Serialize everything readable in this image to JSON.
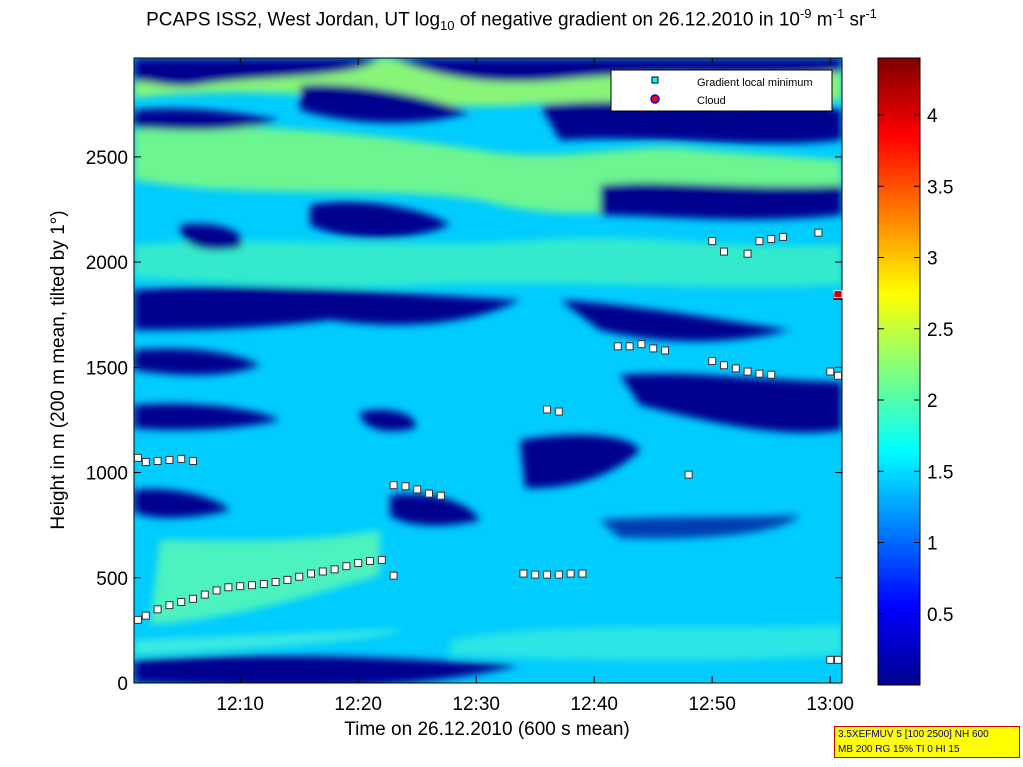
{
  "title": {
    "main": "PCAPS ISS2, West Jordan, UT log",
    "sub": "10",
    "mid": " of negative gradient on 26.12.2010 in 10",
    "exp1": "-9",
    "unit1": " m",
    "exp2": "-1",
    "unit2": " sr",
    "exp3": "-1"
  },
  "footnote": {
    "line1": "3.5XEFMUV 5 [100 2500] NH 600",
    "line2": "MB 200 RG 15% TI 0 HI 15"
  },
  "colors": {
    "background_field": "#00ccff",
    "low_value": "#00008f",
    "high_value": "#7f0000",
    "gradient_marker": "#00ffff",
    "cloud_marker": "#ff0000"
  },
  "chart_data": {
    "type": "heatmap",
    "xlabel": "Time on 26.12.2010 (600 s mean)",
    "ylabel": "Height in m (200 m mean, tilted by 1°)",
    "xlim": [
      "12:01",
      "13:01"
    ],
    "ylim": [
      0,
      2970
    ],
    "x_ticks": [
      "12:10",
      "12:20",
      "12:30",
      "12:40",
      "12:50",
      "13:00"
    ],
    "y_ticks": [
      0,
      500,
      1000,
      1500,
      2000,
      2500
    ],
    "colorbar": {
      "range": [
        0,
        4.4
      ],
      "ticks": [
        0.5,
        1,
        1.5,
        2,
        2.5,
        3,
        3.5,
        4
      ],
      "colormap": "jet"
    },
    "legend": {
      "position": "top-right",
      "entries": [
        {
          "name": "Gradient local minimum",
          "marker": "square",
          "color": "#00ffff"
        },
        {
          "name": "Cloud",
          "marker": "circle",
          "color": "#ff0000"
        }
      ]
    },
    "series": [
      {
        "name": "Gradient local minimum",
        "points": [
          [
            "12:01",
            300
          ],
          [
            "12:02",
            320
          ],
          [
            "12:03",
            350
          ],
          [
            "12:04",
            370
          ],
          [
            "12:05",
            385
          ],
          [
            "12:06",
            400
          ],
          [
            "12:07",
            420
          ],
          [
            "12:08",
            440
          ],
          [
            "12:09",
            455
          ],
          [
            "12:10",
            460
          ],
          [
            "12:11",
            465
          ],
          [
            "12:12",
            470
          ],
          [
            "12:13",
            480
          ],
          [
            "12:14",
            490
          ],
          [
            "12:15",
            505
          ],
          [
            "12:16",
            520
          ],
          [
            "12:17",
            530
          ],
          [
            "12:18",
            540
          ],
          [
            "12:19",
            555
          ],
          [
            "12:20",
            570
          ],
          [
            "12:21",
            580
          ],
          [
            "12:22",
            585
          ],
          [
            "12:23",
            510
          ],
          [
            "12:01",
            1070
          ],
          [
            "12:02",
            1050
          ],
          [
            "12:03",
            1055
          ],
          [
            "12:04",
            1060
          ],
          [
            "12:05",
            1065
          ],
          [
            "12:06",
            1055
          ],
          [
            "12:23",
            940
          ],
          [
            "12:24",
            935
          ],
          [
            "12:25",
            920
          ],
          [
            "12:26",
            900
          ],
          [
            "12:27",
            890
          ],
          [
            "12:34",
            520
          ],
          [
            "12:35",
            515
          ],
          [
            "12:36",
            515
          ],
          [
            "12:37",
            515
          ],
          [
            "12:38",
            520
          ],
          [
            "12:39",
            520
          ],
          [
            "12:36",
            1300
          ],
          [
            "12:37",
            1290
          ],
          [
            "12:42",
            1600
          ],
          [
            "12:43",
            1600
          ],
          [
            "12:44",
            1610
          ],
          [
            "12:45",
            1590
          ],
          [
            "12:46",
            1580
          ],
          [
            "12:48",
            990
          ],
          [
            "12:50",
            1530
          ],
          [
            "12:51",
            1510
          ],
          [
            "12:52",
            1495
          ],
          [
            "12:53",
            1480
          ],
          [
            "12:54",
            1470
          ],
          [
            "12:55",
            1465
          ],
          [
            "12:50",
            2100
          ],
          [
            "12:51",
            2050
          ],
          [
            "12:53",
            2040
          ],
          [
            "12:54",
            2100
          ],
          [
            "12:55",
            2110
          ],
          [
            "12:56",
            2120
          ],
          [
            "12:59",
            2140
          ],
          [
            "13:00",
            1480
          ],
          [
            "13:01",
            1460
          ],
          [
            "13:00",
            110
          ],
          [
            "13:01",
            110
          ]
        ]
      },
      {
        "name": "Cloud",
        "points": [
          [
            "13:01",
            1850
          ]
        ]
      }
    ]
  }
}
